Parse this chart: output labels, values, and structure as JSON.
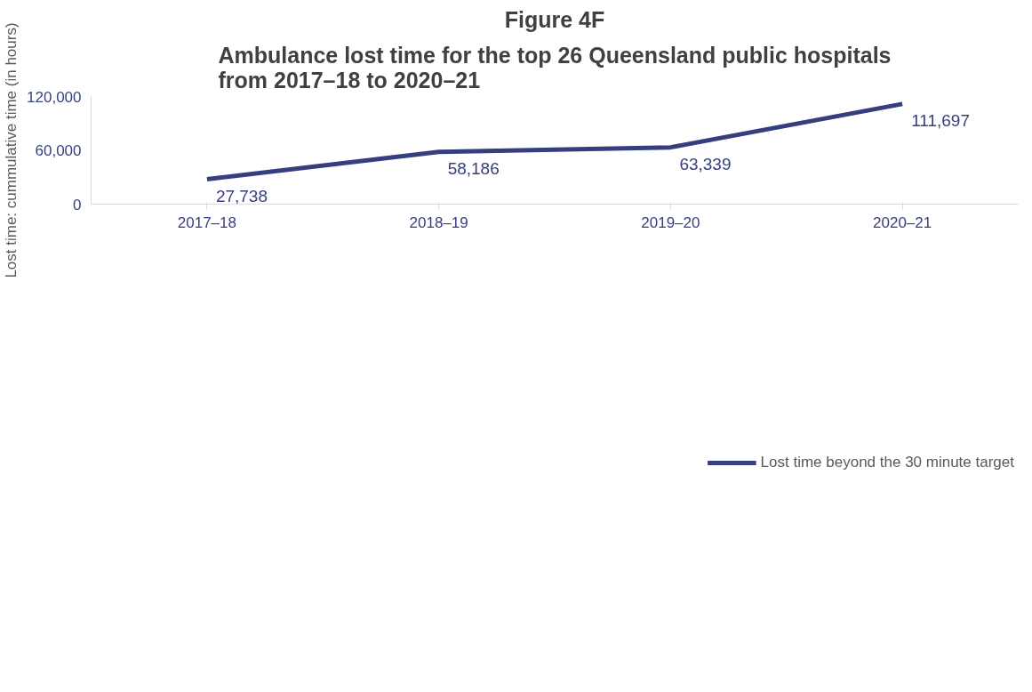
{
  "chart_data": {
    "type": "line",
    "title": "Figure 4F",
    "subtitle": "Ambulance lost time for the top 26 Queensland public hospitals from 2017–18 to 2020–21",
    "ylabel": "Lost time: cummulative time (in hours)",
    "categories": [
      "2017–18",
      "2018–19",
      "2019–20",
      "2020–21"
    ],
    "series": [
      {
        "name": "Lost time beyond the 30 minute target",
        "color": "#363f7e",
        "values": [
          27738,
          58186,
          63339,
          111697
        ],
        "value_labels": [
          "27,738",
          "58,186",
          "63,339",
          "111,697"
        ]
      }
    ],
    "ylim": [
      0,
      120000
    ],
    "yticks": [
      0,
      {
        "value": 60000,
        "label": "60,000"
      },
      {
        "value": 120000,
        "label": "120,000"
      }
    ],
    "grid": false,
    "legend": "bottom",
    "marker": "none",
    "line_style": "solid"
  }
}
